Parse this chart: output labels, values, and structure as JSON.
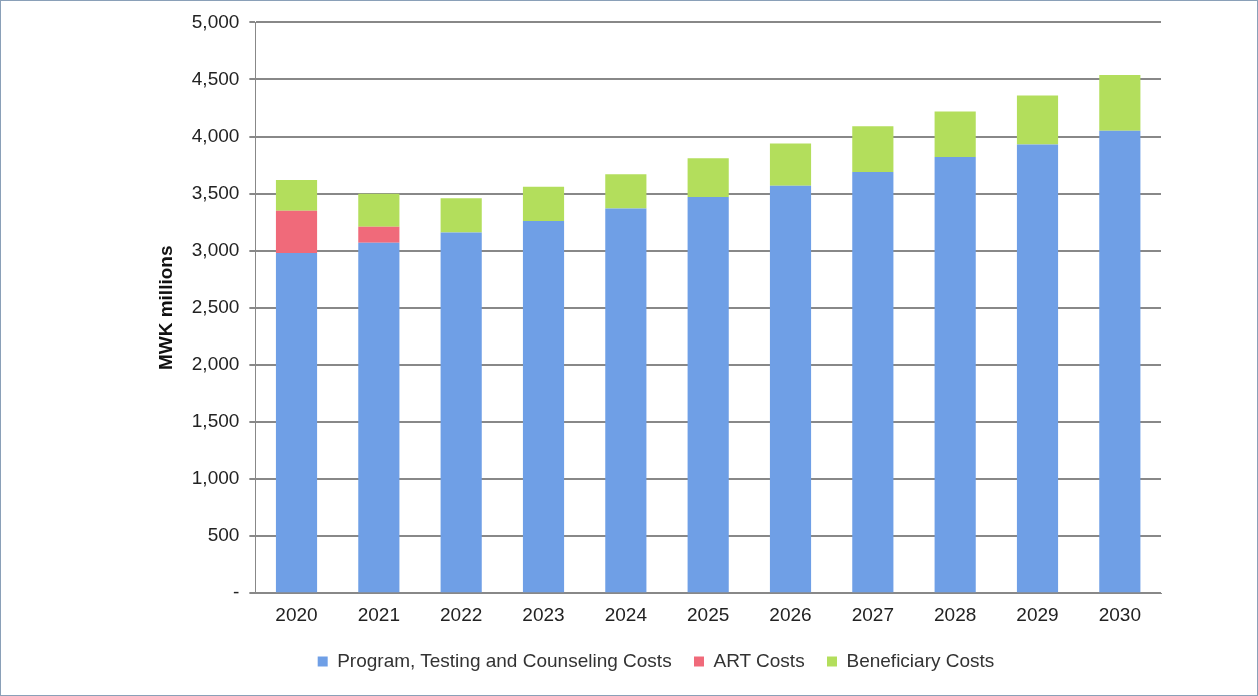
{
  "chart_data": {
    "type": "bar",
    "stacked": true,
    "ylabel": "MWK millions",
    "categories": [
      "2020",
      "2021",
      "2022",
      "2023",
      "2024",
      "2025",
      "2026",
      "2027",
      "2028",
      "2029",
      "2030"
    ],
    "series": [
      {
        "name": "Program, Testing and Counseling Costs",
        "color": "#6f9fe6",
        "values": [
          2980,
          3070,
          3160,
          3260,
          3370,
          3470,
          3570,
          3690,
          3820,
          3930,
          4050
        ]
      },
      {
        "name": "ART Costs",
        "color": "#f06a7a",
        "values": [
          370,
          140,
          0,
          0,
          0,
          0,
          0,
          0,
          0,
          0,
          0
        ]
      },
      {
        "name": "Beneficiary Costs",
        "color": "#b3de5c",
        "values": [
          270,
          290,
          300,
          300,
          300,
          340,
          370,
          400,
          400,
          430,
          490
        ]
      }
    ],
    "ylim": [
      0,
      5000
    ],
    "yticks": [
      {
        "value": 0,
        "label": "-"
      },
      {
        "value": 500,
        "label": "500"
      },
      {
        "value": 1000,
        "label": "1,000"
      },
      {
        "value": 1500,
        "label": "1,500"
      },
      {
        "value": 2000,
        "label": "2,000"
      },
      {
        "value": 2500,
        "label": "2,500"
      },
      {
        "value": 3000,
        "label": "3,000"
      },
      {
        "value": 3500,
        "label": "3,500"
      },
      {
        "value": 4000,
        "label": "4,000"
      },
      {
        "value": 4500,
        "label": "4,500"
      },
      {
        "value": 5000,
        "label": "5,000"
      }
    ],
    "grid": "y",
    "legend": "bottom"
  }
}
